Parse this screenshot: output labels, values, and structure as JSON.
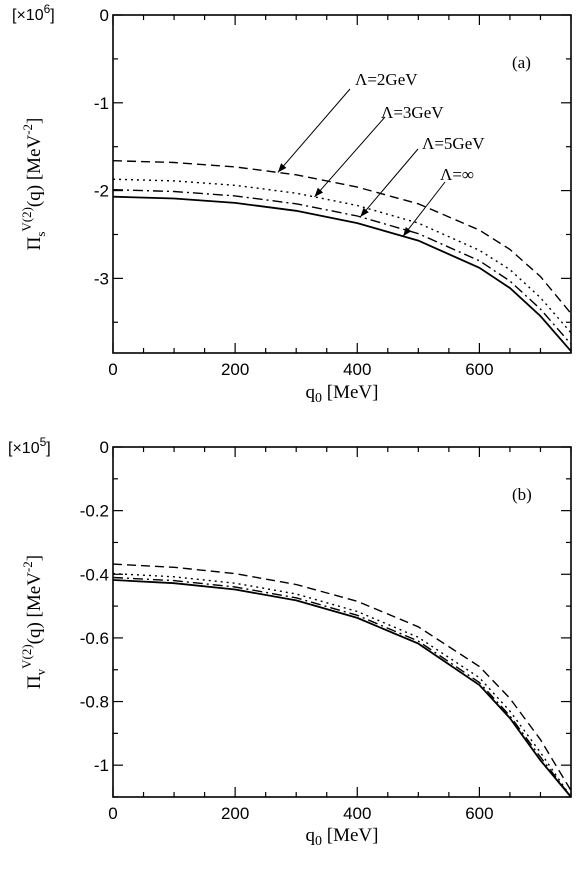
{
  "chart_data": [
    {
      "type": "line",
      "panel_label": "(a)",
      "scale_label": "[×10",
      "scale_exp": "6",
      "scale_close": "]",
      "xlabel_main": "q",
      "xlabel_sub": "0",
      "xlabel_unit": " [MeV]",
      "ylabel": {
        "base": "Π",
        "sub": "s",
        "sup": "V(2)",
        "arg": "(q) [MeV",
        "exp": "-2",
        "close": "]"
      },
      "xlim": [
        0,
        750
      ],
      "ylim": [
        -3.85,
        0
      ],
      "x_ticks": [
        0,
        200,
        400,
        600
      ],
      "x_tick_labels": [
        "0",
        "200",
        "400",
        "600"
      ],
      "y_ticks": [
        0,
        -1,
        -2,
        -3
      ],
      "y_tick_labels": [
        "0",
        "-1",
        "-2",
        "-3"
      ],
      "grid": false,
      "series": [
        {
          "label": "Λ=2GeV",
          "style": "dashed",
          "x": [
            0,
            100,
            200,
            300,
            400,
            500,
            600,
            650,
            700,
            750
          ],
          "y": [
            -1.66,
            -1.68,
            -1.73,
            -1.82,
            -1.96,
            -2.15,
            -2.45,
            -2.67,
            -2.98,
            -3.4
          ]
        },
        {
          "label": "Λ=3GeV",
          "style": "dotted",
          "x": [
            0,
            100,
            200,
            300,
            400,
            500,
            600,
            650,
            700,
            750
          ],
          "y": [
            -1.87,
            -1.89,
            -1.94,
            -2.03,
            -2.17,
            -2.37,
            -2.68,
            -2.9,
            -3.22,
            -3.62
          ]
        },
        {
          "label": "Λ=5GeV",
          "style": "dash-dot",
          "x": [
            0,
            100,
            200,
            300,
            400,
            500,
            600,
            650,
            700,
            750
          ],
          "y": [
            -1.99,
            -2.01,
            -2.06,
            -2.15,
            -2.29,
            -2.49,
            -2.8,
            -3.03,
            -3.35,
            -3.75
          ]
        },
        {
          "label": "Λ=∞",
          "style": "solid",
          "x": [
            0,
            100,
            200,
            300,
            400,
            500,
            600,
            650,
            700,
            750
          ],
          "y": [
            -2.07,
            -2.09,
            -2.14,
            -2.23,
            -2.37,
            -2.57,
            -2.88,
            -3.11,
            -3.43,
            -3.83
          ]
        }
      ],
      "annotations": [
        {
          "text": "Λ=2GeV",
          "series": 0,
          "x": 270
        },
        {
          "text": "Λ=3GeV",
          "series": 1,
          "x": 330
        },
        {
          "text": "Λ=5GeV",
          "series": 2,
          "x": 405
        },
        {
          "text": "Λ=∞",
          "series": 3,
          "x": 475
        }
      ]
    },
    {
      "type": "line",
      "panel_label": "(b)",
      "scale_label": "[×10",
      "scale_exp": "5",
      "scale_close": "]",
      "xlabel_main": "q",
      "xlabel_sub": "0",
      "xlabel_unit": " [MeV]",
      "ylabel": {
        "base": "Π",
        "sub": "v",
        "sup": "V(2)",
        "arg": "(q) [MeV",
        "exp": "-2",
        "close": "]"
      },
      "xlim": [
        0,
        750
      ],
      "ylim": [
        -1.1,
        0
      ],
      "x_ticks": [
        0,
        200,
        400,
        600
      ],
      "x_tick_labels": [
        "0",
        "200",
        "400",
        "600"
      ],
      "y_ticks": [
        0,
        -0.2,
        -0.4,
        -0.6,
        -0.8,
        -1
      ],
      "y_tick_labels": [
        "0",
        "-0.2",
        "-0.4",
        "-0.6",
        "-0.8",
        "-1"
      ],
      "grid": false,
      "series": [
        {
          "label": "Λ=2GeV",
          "style": "dashed",
          "x": [
            0,
            100,
            200,
            300,
            400,
            500,
            600,
            650,
            700,
            750
          ],
          "y": [
            -0.368,
            -0.378,
            -0.398,
            -0.432,
            -0.485,
            -0.565,
            -0.69,
            -0.79,
            -0.92,
            -1.08
          ]
        },
        {
          "label": "Λ=3GeV",
          "style": "dotted",
          "x": [
            0,
            100,
            200,
            300,
            400,
            500,
            600,
            650,
            700,
            750
          ],
          "y": [
            -0.398,
            -0.408,
            -0.428,
            -0.462,
            -0.517,
            -0.598,
            -0.725,
            -0.83,
            -0.96,
            -1.1
          ]
        },
        {
          "label": "Λ=5GeV",
          "style": "dash-dot",
          "x": [
            0,
            100,
            200,
            300,
            400,
            500,
            600,
            650,
            700,
            750
          ],
          "y": [
            -0.41,
            -0.42,
            -0.44,
            -0.474,
            -0.529,
            -0.61,
            -0.74,
            -0.845,
            -0.975,
            -1.1
          ]
        },
        {
          "label": "Λ=∞",
          "style": "solid",
          "x": [
            0,
            100,
            200,
            300,
            400,
            500,
            600,
            650,
            700,
            750
          ],
          "y": [
            -0.418,
            -0.428,
            -0.448,
            -0.482,
            -0.537,
            -0.618,
            -0.748,
            -0.852,
            -0.985,
            -1.1
          ]
        }
      ],
      "annotations": []
    }
  ]
}
